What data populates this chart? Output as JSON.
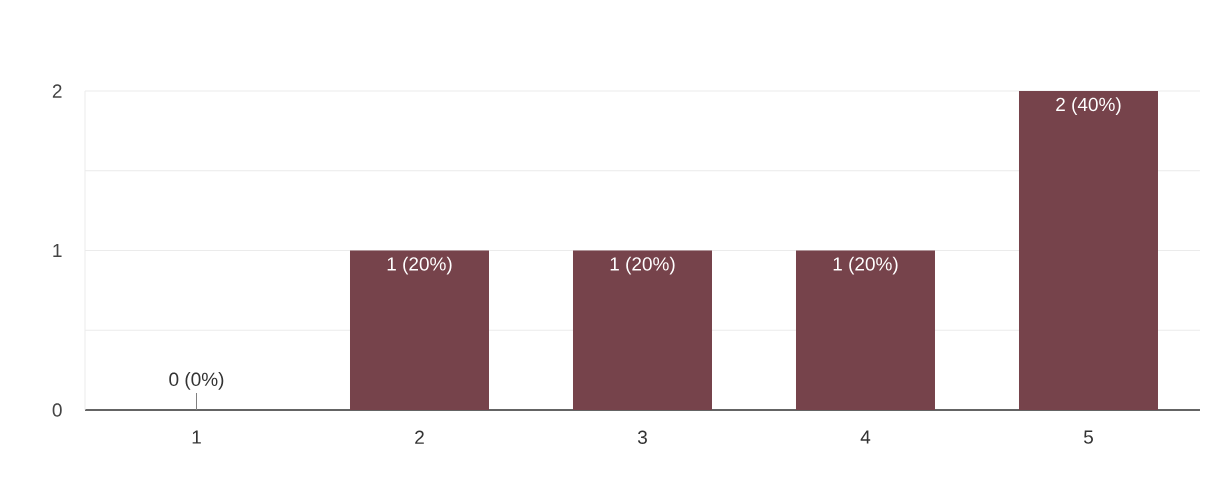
{
  "chart_data": {
    "type": "bar",
    "categories": [
      "1",
      "2",
      "3",
      "4",
      "5"
    ],
    "values": [
      0,
      1,
      1,
      1,
      2
    ],
    "color": "#76434b",
    "ylim": [
      0,
      2
    ],
    "yticks": [
      0,
      1,
      2
    ],
    "grid": "y",
    "value_labels": [
      "0 (0%)",
      "1 (20%)",
      "1 (20%)",
      "1 (20%)",
      "2 (40%)"
    ]
  }
}
